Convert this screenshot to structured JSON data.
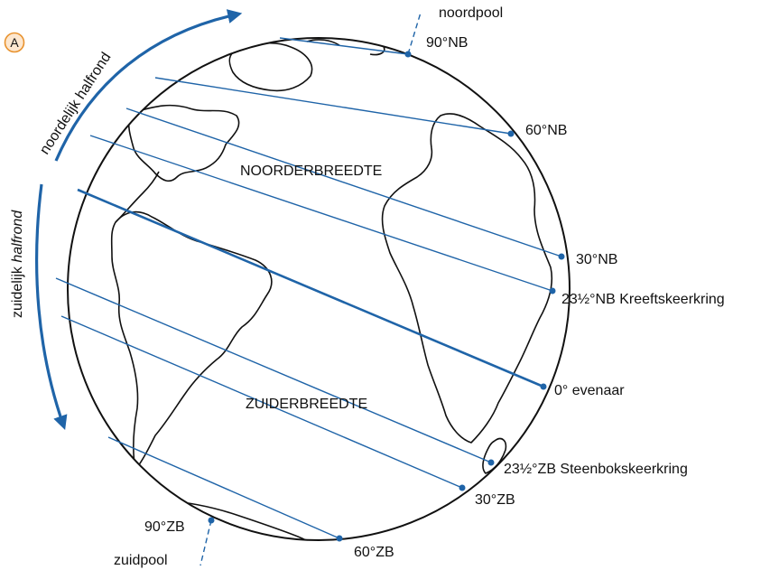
{
  "badge": "A",
  "labels": {
    "north_pole": "noordpool",
    "south_pole": "zuidpool",
    "lat_90n": "90°NB",
    "lat_60n": "60°NB",
    "lat_30n": "30°NB",
    "lat_23n": "23½°NB Kreeftskeerkring",
    "equator": "0° evenaar",
    "lat_23s": "23½°ZB Steenbokskeerkring",
    "lat_30s": "30°ZB",
    "lat_60s": "60°ZB",
    "lat_90s": "90°ZB",
    "northern_latitude": "NOORDERBREEDTE",
    "southern_latitude": "ZUIDERBREEDTE",
    "northern_hemisphere": "noordelijk halfrond",
    "southern_hemisphere_prefix": "zuidelijk ",
    "southern_hemisphere_suffix": "halfrond"
  },
  "colors": {
    "accent": "#1f64a8",
    "outline": "#111111",
    "badge": "#e8922e"
  }
}
